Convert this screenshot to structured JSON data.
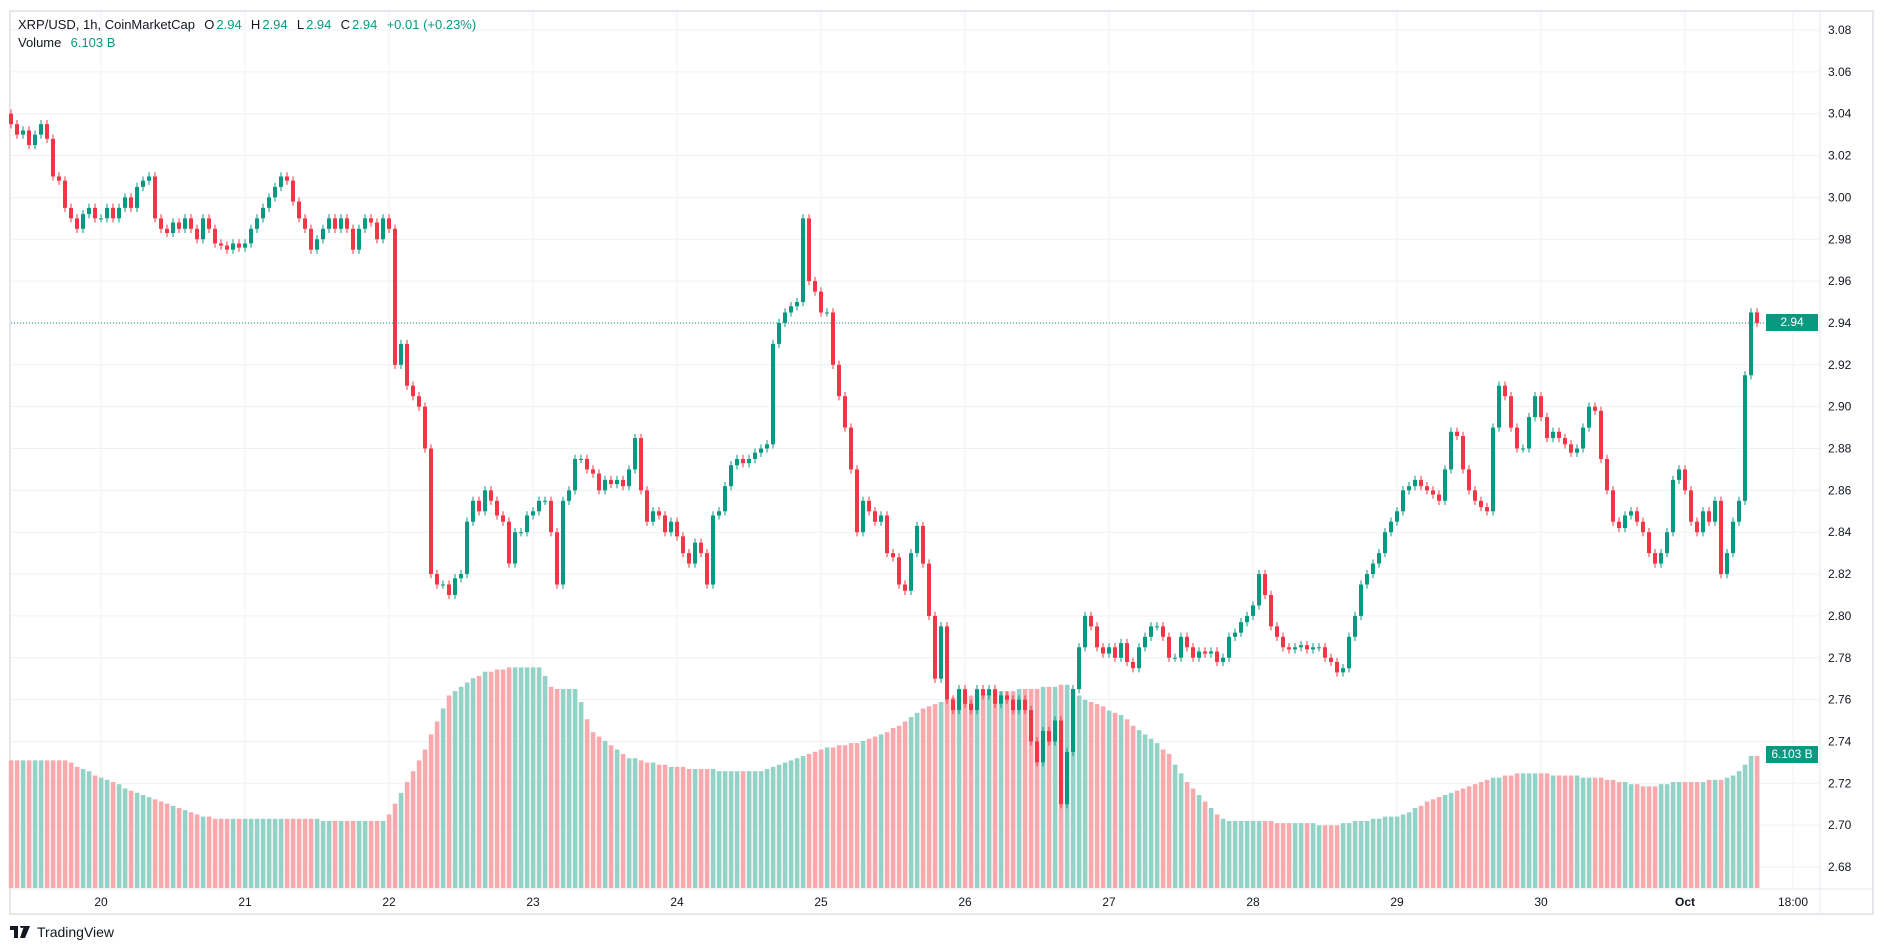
{
  "legend": {
    "symbol": "XRP/USD, 1h, CoinMarketCap",
    "o_label": "O",
    "o_value": "2.94",
    "h_label": "H",
    "h_value": "2.94",
    "l_label": "L",
    "l_value": "2.94",
    "c_label": "C",
    "c_value": "2.94",
    "change": "+0.01 (+0.23%)",
    "volume_label": "Volume",
    "volume_value": "6.103 B"
  },
  "price_tag": "2.94",
  "volume_tag": "6.103 B",
  "brand": "TradingView",
  "colors": {
    "up": "#089981",
    "down": "#f23645",
    "vol_up": "#92d2c7",
    "vol_down": "#f7a9ad",
    "grid": "#f0f1f4"
  },
  "chart_data": {
    "type": "candlestick",
    "title": "XRP/USD, 1h, CoinMarketCap",
    "interval": "1h",
    "start": "Sep 19 09:00",
    "ylim": [
      2.67,
      3.09
    ],
    "y_ticks": [
      "3.08",
      "3.06",
      "3.04",
      "3.02",
      "3.00",
      "2.98",
      "2.96",
      "2.94",
      "2.92",
      "2.90",
      "2.88",
      "2.86",
      "2.84",
      "2.82",
      "2.80",
      "2.78",
      "2.76",
      "2.74",
      "2.72",
      "2.70",
      "2.68"
    ],
    "x_ticks": [
      "20",
      "21",
      "22",
      "23",
      "24",
      "25",
      "26",
      "27",
      "28",
      "29",
      "30",
      "Oct",
      "18:00"
    ],
    "last_price": 2.94,
    "first_open": 3.04,
    "closes": [
      3.035,
      3.03,
      3.032,
      3.025,
      3.03,
      3.035,
      3.028,
      3.01,
      3.008,
      2.995,
      2.99,
      2.985,
      2.992,
      2.995,
      2.99,
      2.99,
      2.995,
      2.99,
      2.995,
      3.0,
      2.995,
      3.005,
      3.008,
      3.01,
      2.99,
      2.985,
      2.983,
      2.988,
      2.985,
      2.99,
      2.985,
      2.98,
      2.99,
      2.985,
      2.978,
      2.977,
      2.975,
      2.978,
      2.976,
      2.978,
      2.985,
      2.99,
      2.995,
      3.0,
      3.005,
      3.01,
      3.008,
      2.998,
      2.99,
      2.985,
      2.975,
      2.98,
      2.985,
      2.99,
      2.985,
      2.99,
      2.985,
      2.975,
      2.985,
      2.99,
      2.988,
      2.98,
      2.99,
      2.985,
      2.92,
      2.93,
      2.91,
      2.905,
      2.9,
      2.88,
      2.82,
      2.815,
      2.815,
      2.81,
      2.818,
      2.82,
      2.845,
      2.855,
      2.85,
      2.86,
      2.855,
      2.848,
      2.845,
      2.825,
      2.84,
      2.84,
      2.848,
      2.85,
      2.855,
      2.855,
      2.84,
      2.815,
      2.855,
      2.86,
      2.875,
      2.875,
      2.87,
      2.868,
      2.86,
      2.865,
      2.863,
      2.865,
      2.862,
      2.87,
      2.885,
      2.86,
      2.845,
      2.85,
      2.848,
      2.84,
      2.845,
      2.838,
      2.83,
      2.825,
      2.835,
      2.83,
      2.815,
      2.848,
      2.85,
      2.862,
      2.872,
      2.875,
      2.873,
      2.875,
      2.878,
      2.88,
      2.882,
      2.93,
      2.94,
      2.945,
      2.948,
      2.95,
      2.99,
      2.96,
      2.955,
      2.945,
      2.945,
      2.92,
      2.905,
      2.89,
      2.87,
      2.84,
      2.855,
      2.85,
      2.845,
      2.848,
      2.83,
      2.828,
      2.815,
      2.812,
      2.83,
      2.843,
      2.825,
      2.8,
      2.77,
      2.795,
      2.76,
      2.755,
      2.765,
      2.758,
      2.755,
      2.765,
      2.762,
      2.765,
      2.758,
      2.762,
      2.76,
      2.755,
      2.76,
      2.755,
      2.74,
      2.73,
      2.745,
      2.74,
      2.75,
      2.71,
      2.735,
      2.765,
      2.785,
      2.8,
      2.795,
      2.785,
      2.782,
      2.785,
      2.78,
      2.787,
      2.778,
      2.775,
      2.785,
      2.79,
      2.795,
      2.795,
      2.79,
      2.78,
      2.78,
      2.79,
      2.785,
      2.78,
      2.783,
      2.782,
      2.783,
      2.778,
      2.78,
      2.79,
      2.792,
      2.797,
      2.8,
      2.805,
      2.82,
      2.81,
      2.795,
      2.79,
      2.785,
      2.784,
      2.785,
      2.786,
      2.784,
      2.785,
      2.785,
      2.78,
      2.778,
      2.773,
      2.775,
      2.79,
      2.8,
      2.815,
      2.82,
      2.825,
      2.83,
      2.84,
      2.845,
      2.85,
      2.86,
      2.862,
      2.865,
      2.862,
      2.86,
      2.858,
      2.855,
      2.87,
      2.888,
      2.886,
      2.87,
      2.86,
      2.855,
      2.852,
      2.85,
      2.89,
      2.91,
      2.905,
      2.89,
      2.88,
      2.88,
      2.895,
      2.905,
      2.895,
      2.885,
      2.888,
      2.885,
      2.882,
      2.878,
      2.88,
      2.89,
      2.9,
      2.898,
      2.875,
      2.86,
      2.845,
      2.842,
      2.848,
      2.85,
      2.845,
      2.84,
      2.83,
      2.825,
      2.83,
      2.84,
      2.865,
      2.87,
      2.86,
      2.845,
      2.84,
      2.85,
      2.845,
      2.855,
      2.82,
      2.83,
      2.845,
      2.855,
      2.915,
      2.945,
      2.94
    ],
    "volume_unit": "B",
    "volumes": [
      5.9,
      5.9,
      5.9,
      5.9,
      5.9,
      5.9,
      5.9,
      5.9,
      5.9,
      5.9,
      5.8,
      5.6,
      5.5,
      5.4,
      5.2,
      5.1,
      5.0,
      4.9,
      4.8,
      4.6,
      4.5,
      4.4,
      4.3,
      4.2,
      4.1,
      4.0,
      3.9,
      3.8,
      3.7,
      3.6,
      3.5,
      3.4,
      3.3,
      3.3,
      3.2,
      3.2,
      3.2,
      3.2,
      3.2,
      3.2,
      3.2,
      3.2,
      3.2,
      3.2,
      3.2,
      3.2,
      3.2,
      3.2,
      3.2,
      3.2,
      3.2,
      3.2,
      3.1,
      3.1,
      3.1,
      3.1,
      3.1,
      3.1,
      3.1,
      3.1,
      3.1,
      3.1,
      3.1,
      3.4,
      3.9,
      4.4,
      4.9,
      5.4,
      5.9,
      6.4,
      7.1,
      7.7,
      8.3,
      8.9,
      9.1,
      9.3,
      9.5,
      9.7,
      9.8,
      10.0,
      10.0,
      10.1,
      10.1,
      10.2,
      10.2,
      10.2,
      10.2,
      10.2,
      10.2,
      9.8,
      9.3,
      9.2,
      9.2,
      9.2,
      9.2,
      8.6,
      7.8,
      7.2,
      7.0,
      6.8,
      6.6,
      6.4,
      6.2,
      6.0,
      6.0,
      5.9,
      5.8,
      5.8,
      5.7,
      5.7,
      5.6,
      5.6,
      5.6,
      5.5,
      5.5,
      5.5,
      5.5,
      5.5,
      5.4,
      5.4,
      5.4,
      5.4,
      5.4,
      5.4,
      5.4,
      5.4,
      5.5,
      5.6,
      5.7,
      5.8,
      5.9,
      6.0,
      6.1,
      6.2,
      6.3,
      6.4,
      6.5,
      6.5,
      6.6,
      6.6,
      6.7,
      6.7,
      6.8,
      6.9,
      7.0,
      7.1,
      7.2,
      7.4,
      7.5,
      7.7,
      7.9,
      8.1,
      8.3,
      8.4,
      8.5,
      8.6,
      8.7,
      8.8,
      8.9,
      8.9,
      8.9,
      9.0,
      9.0,
      9.0,
      9.1,
      9.1,
      9.1,
      9.1,
      9.2,
      9.2,
      9.2,
      9.2,
      9.3,
      9.3,
      9.3,
      9.4,
      9.4,
      9.2,
      8.9,
      8.7,
      8.6,
      8.5,
      8.4,
      8.2,
      8.1,
      8.0,
      7.8,
      7.5,
      7.3,
      7.1,
      6.9,
      6.7,
      6.4,
      6.2,
      5.7,
      5.3,
      4.9,
      4.6,
      4.3,
      4.0,
      3.7,
      3.4,
      3.2,
      3.1,
      3.1,
      3.1,
      3.1,
      3.1,
      3.1,
      3.1,
      3.1,
      3.0,
      3.0,
      3.0,
      3.0,
      3.0,
      3.0,
      3.0,
      2.9,
      2.9,
      2.9,
      2.9,
      3.0,
      3.0,
      3.1,
      3.1,
      3.1,
      3.2,
      3.2,
      3.3,
      3.3,
      3.3,
      3.4,
      3.5,
      3.7,
      3.8,
      4.0,
      4.1,
      4.2,
      4.3,
      4.4,
      4.5,
      4.6,
      4.7,
      4.8,
      4.9,
      5.0,
      5.1,
      5.1,
      5.2,
      5.2,
      5.3,
      5.3,
      5.3,
      5.3,
      5.3,
      5.3,
      5.2,
      5.2,
      5.2,
      5.2,
      5.2,
      5.1,
      5.1,
      5.1,
      5.1,
      5.0,
      5.0,
      4.9,
      4.9,
      4.8,
      4.8,
      4.7,
      4.7,
      4.7,
      4.8,
      4.8,
      4.9,
      4.9,
      4.9,
      4.9,
      4.9,
      4.9,
      5.0,
      5.0,
      5.0,
      5.1,
      5.2,
      5.4,
      5.7,
      6.103,
      6.103
    ]
  }
}
